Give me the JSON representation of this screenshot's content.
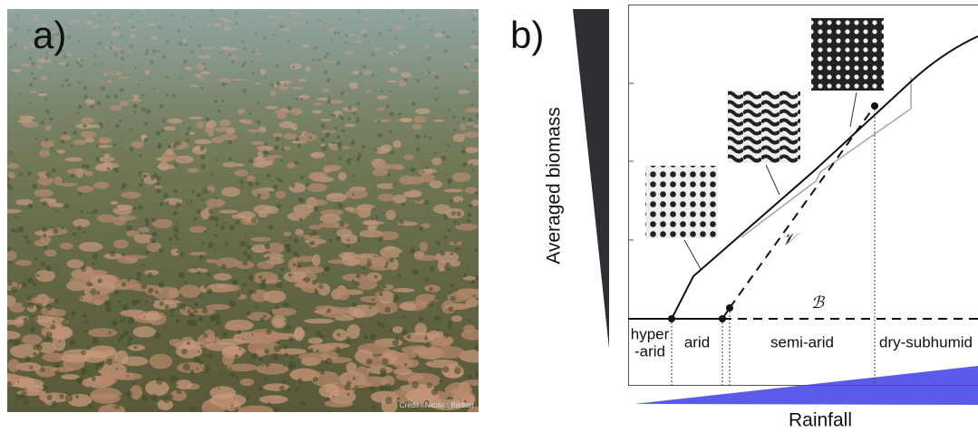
{
  "panel_a": {
    "label": "a)",
    "credit": "Crédit : Nicolas Barbier"
  },
  "panel_b": {
    "label": "b)",
    "y_axis_label": "Averaged biomass",
    "x_axis_label": "Rainfall",
    "zones": [
      [
        "hyper",
        "-arid"
      ],
      [
        "arid"
      ],
      [
        "semi-arid"
      ],
      [
        "dry-subhumid"
      ]
    ],
    "curve_labels": {
      "vegetated": "𝒱",
      "bare": "ℬ"
    }
  }
}
